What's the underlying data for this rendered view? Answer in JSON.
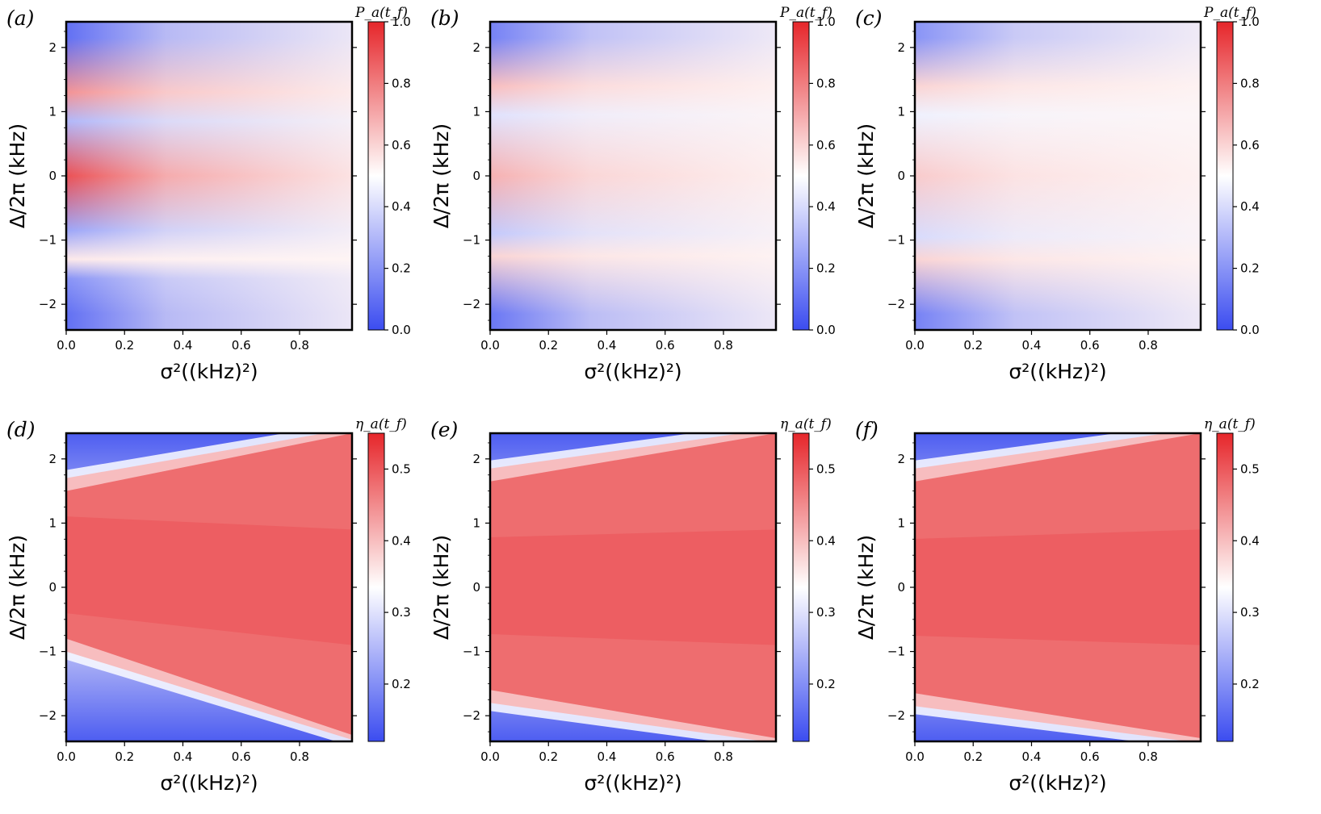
{
  "chart_data": [
    {
      "type": "heatmap",
      "panel_label": "(a)",
      "xlabel": "σ²((kHz)²)",
      "ylabel": "Δ/2π (kHz)",
      "colorbar_label": "P_a(t_f)",
      "xlim": [
        0,
        0.98
      ],
      "ylim": [
        -2.4,
        2.4
      ],
      "x_ticks": [
        "0.0",
        "0.2",
        "0.4",
        "0.6",
        "0.8"
      ],
      "y_ticks": [
        "−2",
        "−1",
        "0",
        "1",
        "2"
      ],
      "clim": [
        0,
        1
      ],
      "colorbar_ticks": [
        "0.0",
        "0.2",
        "0.4",
        "0.6",
        "0.8",
        "1.0"
      ],
      "bands": [
        {
          "detuning": 2.15,
          "value": 0.1
        },
        {
          "detuning": 1.3,
          "value": 0.75
        },
        {
          "detuning": 0.85,
          "value": 0.3
        },
        {
          "detuning": 0.0,
          "value": 0.9
        },
        {
          "detuning": -0.85,
          "value": 0.25
        },
        {
          "detuning": -1.3,
          "value": 0.55
        },
        {
          "detuning": -1.6,
          "value": 0.2
        },
        {
          "detuning": -2.15,
          "value": 0.1
        }
      ]
    },
    {
      "type": "heatmap",
      "panel_label": "(b)",
      "xlabel": "σ²((kHz)²)",
      "ylabel": "Δ/2π (kHz)",
      "colorbar_label": "P_a(t_f)",
      "xlim": [
        0,
        0.98
      ],
      "ylim": [
        -2.4,
        2.4
      ],
      "x_ticks": [
        "0.0",
        "0.2",
        "0.4",
        "0.6",
        "0.8"
      ],
      "y_ticks": [
        "−2",
        "−1",
        "0",
        "1",
        "2"
      ],
      "clim": [
        0,
        1
      ],
      "colorbar_ticks": [
        "0.0",
        "0.2",
        "0.4",
        "0.6",
        "0.8",
        "1.0"
      ],
      "bands": [
        {
          "detuning": 2.15,
          "value": 0.15
        },
        {
          "detuning": 1.4,
          "value": 0.65
        },
        {
          "detuning": 0.95,
          "value": 0.42
        },
        {
          "detuning": 0.0,
          "value": 0.68
        },
        {
          "detuning": -0.9,
          "value": 0.35
        },
        {
          "detuning": -1.25,
          "value": 0.6
        },
        {
          "detuning": -2.15,
          "value": 0.12
        }
      ]
    },
    {
      "type": "heatmap",
      "panel_label": "(c)",
      "xlabel": "σ²((kHz)²)",
      "ylabel": "Δ/2π (kHz)",
      "colorbar_label": "P_a(t_f)",
      "xlim": [
        0,
        0.98
      ],
      "ylim": [
        -2.4,
        2.4
      ],
      "x_ticks": [
        "0.0",
        "0.2",
        "0.4",
        "0.6",
        "0.8"
      ],
      "y_ticks": [
        "−2",
        "−1",
        "0",
        "1",
        "2"
      ],
      "clim": [
        0,
        1
      ],
      "colorbar_ticks": [
        "0.0",
        "0.2",
        "0.4",
        "0.6",
        "0.8",
        "1.0"
      ],
      "bands": [
        {
          "detuning": 2.15,
          "value": 0.2
        },
        {
          "detuning": 1.4,
          "value": 0.6
        },
        {
          "detuning": 0.95,
          "value": 0.46
        },
        {
          "detuning": 0.0,
          "value": 0.62
        },
        {
          "detuning": -0.95,
          "value": 0.4
        },
        {
          "detuning": -1.3,
          "value": 0.6
        },
        {
          "detuning": -2.15,
          "value": 0.15
        }
      ]
    },
    {
      "type": "heatmap",
      "panel_label": "(d)",
      "xlabel": "σ²((kHz)²)",
      "ylabel": "Δ/2π (kHz)",
      "colorbar_label": "η_a(t_f)",
      "xlim": [
        0,
        0.98
      ],
      "ylim": [
        -2.4,
        2.4
      ],
      "x_ticks": [
        "0.0",
        "0.2",
        "0.4",
        "0.6",
        "0.8"
      ],
      "y_ticks": [
        "−2",
        "−1",
        "0",
        "1",
        "2"
      ],
      "clim": [
        0.12,
        0.55
      ],
      "colorbar_ticks": [
        "0.2",
        "0.3",
        "0.4",
        "0.5"
      ],
      "boundary_upper": {
        "at_x0": 1.6,
        "at_x1": 2.4
      },
      "boundary_lower": {
        "at_x0": -0.9,
        "at_x1": -2.3
      },
      "plateau_value": 0.5
    },
    {
      "type": "heatmap",
      "panel_label": "(e)",
      "xlabel": "σ²((kHz)²)",
      "ylabel": "Δ/2π (kHz)",
      "colorbar_label": "η_a(t_f)",
      "xlim": [
        0,
        0.98
      ],
      "ylim": [
        -2.4,
        2.4
      ],
      "x_ticks": [
        "0.0",
        "0.2",
        "0.4",
        "0.6",
        "0.8"
      ],
      "y_ticks": [
        "−2",
        "−1",
        "0",
        "1",
        "2"
      ],
      "clim": [
        0.12,
        0.55
      ],
      "colorbar_ticks": [
        "0.2",
        "0.3",
        "0.4",
        "0.5"
      ],
      "boundary_upper": {
        "at_x0": 1.75,
        "at_x1": 2.4
      },
      "boundary_lower": {
        "at_x0": -1.7,
        "at_x1": -2.35
      },
      "plateau_value": 0.5
    },
    {
      "type": "heatmap",
      "panel_label": "(f)",
      "xlabel": "σ²((kHz)²)",
      "ylabel": "Δ/2π (kHz)",
      "colorbar_label": "η_a(t_f)",
      "xlim": [
        0,
        0.98
      ],
      "ylim": [
        -2.4,
        2.4
      ],
      "x_ticks": [
        "0.0",
        "0.2",
        "0.4",
        "0.6",
        "0.8"
      ],
      "y_ticks": [
        "−2",
        "−1",
        "0",
        "1",
        "2"
      ],
      "clim": [
        0.12,
        0.55
      ],
      "colorbar_ticks": [
        "0.2",
        "0.3",
        "0.4",
        "0.5"
      ],
      "boundary_upper": {
        "at_x0": 1.75,
        "at_x1": 2.4
      },
      "boundary_lower": {
        "at_x0": -1.75,
        "at_x1": -2.35
      },
      "plateau_value": 0.5
    }
  ],
  "colors": {
    "low": "#3b4cf0",
    "mid": "#ffffff",
    "high": "#e6262a",
    "frame": "#000000"
  }
}
